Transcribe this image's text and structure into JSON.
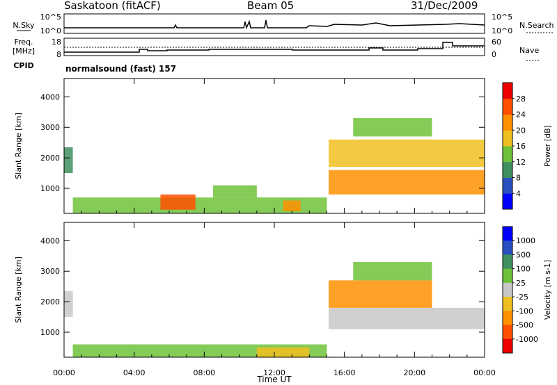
{
  "header": {
    "station": "Saskatoon (fitACF)",
    "beam": "Beam 05",
    "date": "31/Dec/2009"
  },
  "strip_panels": {
    "nsky_label": "N.Sky",
    "nsky_ticks": [
      "10^5",
      "10^0"
    ],
    "nsearch_label": "N.Search",
    "freq_label_1": "Freq.",
    "freq_label_2": "[MHz]",
    "freq_ticks": [
      "18",
      "8"
    ],
    "nave_ticks": [
      "60",
      "0"
    ],
    "nave_label": "Nave",
    "cpid_label": "CPID",
    "cpid_text": "normalsound (fast) 157"
  },
  "chart_data": [
    {
      "type": "heatmap",
      "title": "",
      "xlabel": "Time UT",
      "ylabel": "Slant Range [km]",
      "x_ticks": [
        "00:00",
        "04:00",
        "08:00",
        "12:00",
        "16:00",
        "20:00",
        "00:00"
      ],
      "x_range_hours": [
        0,
        24
      ],
      "y_ticks": [
        1000,
        2000,
        3000,
        4000
      ],
      "ylim": [
        180,
        4600
      ],
      "colorbar": {
        "label": "Power [dB]",
        "ticks": [
          "4",
          "8",
          "12",
          "16",
          "20",
          "24",
          "28"
        ],
        "range": [
          0,
          30
        ],
        "colors": [
          "#0000ff",
          "#2a4fc0",
          "#3f8f5f",
          "#6ec23a",
          "#f0c020",
          "#ff9000",
          "#ff5000",
          "#ee0000"
        ]
      },
      "regions": [
        {
          "t": [
            0.0,
            0.5
          ],
          "r": [
            1500,
            2350
          ],
          "v": 10
        },
        {
          "t": [
            0.5,
            15.0
          ],
          "r": [
            180,
            700
          ],
          "v": 12
        },
        {
          "t": [
            5.5,
            7.5
          ],
          "r": [
            300,
            800
          ],
          "v": 24
        },
        {
          "t": [
            8.5,
            11.0
          ],
          "r": [
            700,
            1100
          ],
          "v": 14
        },
        {
          "t": [
            12.5,
            13.5
          ],
          "r": [
            250,
            600
          ],
          "v": 22
        },
        {
          "t": [
            15.1,
            24.0
          ],
          "r": [
            800,
            1600
          ],
          "v": 20
        },
        {
          "t": [
            15.1,
            24.0
          ],
          "r": [
            1700,
            2600
          ],
          "v": 18
        },
        {
          "t": [
            16.5,
            21.0
          ],
          "r": [
            2700,
            3300
          ],
          "v": 13
        }
      ]
    },
    {
      "type": "heatmap",
      "title": "",
      "xlabel": "Time UT",
      "ylabel": "Slant Range [km]",
      "x_ticks": [
        "00:00",
        "04:00",
        "08:00",
        "12:00",
        "16:00",
        "20:00",
        "00:00"
      ],
      "x_range_hours": [
        0,
        24
      ],
      "y_ticks": [
        1000,
        2000,
        3000,
        4000
      ],
      "ylim": [
        180,
        4600
      ],
      "colorbar": {
        "label": "Velocity [m s-1]",
        "ticks": [
          "1000",
          "500",
          "100",
          "25",
          "-25",
          "-100",
          "-500",
          "-1000"
        ],
        "colors": [
          "#0000ff",
          "#2a4fc0",
          "#3f8f5f",
          "#6ec23a",
          "#c8c8c8",
          "#f0c020",
          "#ff9000",
          "#ff5000",
          "#ee0000"
        ]
      },
      "regions": [
        {
          "t": [
            0.0,
            0.5
          ],
          "r": [
            1500,
            2350
          ],
          "v": 0
        },
        {
          "t": [
            0.5,
            15.0
          ],
          "r": [
            180,
            600
          ],
          "v": 60
        },
        {
          "t": [
            11.0,
            14.0
          ],
          "r": [
            180,
            500
          ],
          "v": -80
        },
        {
          "t": [
            15.1,
            24.0
          ],
          "r": [
            1100,
            1800
          ],
          "v": 0
        },
        {
          "t": [
            15.1,
            21.0
          ],
          "r": [
            1800,
            2700
          ],
          "v": -300
        },
        {
          "t": [
            16.5,
            21.0
          ],
          "r": [
            2700,
            3300
          ],
          "v": 60
        }
      ]
    }
  ],
  "colors": {
    "axis": "#000000",
    "background": "#ffffff"
  }
}
